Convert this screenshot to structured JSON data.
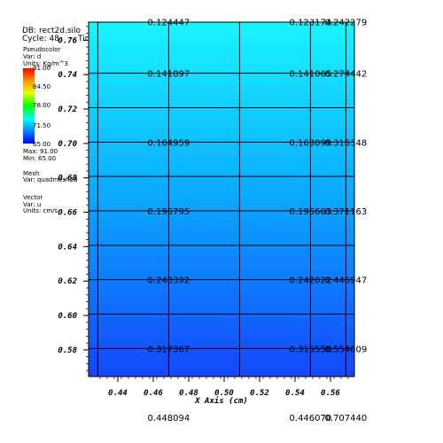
{
  "header": {
    "db_label": "DB: rect2d.silo",
    "cycle_label": "Cycle: 48",
    "time_label": "Time:4.8"
  },
  "legend": {
    "plot_type": "Pseudocolor",
    "var_label": "Var: d",
    "units_label": "Units: Kg/m^3",
    "ticks": [
      "91.00",
      "84.50",
      "78.00",
      "71.50",
      "65.00"
    ],
    "max_label": "Max: 91.00",
    "min_label": "Min: 65.00",
    "mesh_title": "Mesh",
    "mesh_var": "Var: quadmesh2d",
    "vector_title": "Vector",
    "vector_var": "Var: u",
    "vector_units": "Units: cm/s"
  },
  "colors": {
    "cell_top": "#19f5ff",
    "cell_bottom": "#1446ff",
    "grid": "#000000"
  },
  "chart_data": {
    "type": "heatmap",
    "xlabel": "X Axis (cm)",
    "x_ticks": [
      "0.44",
      "0.46",
      "0.48",
      "0.50",
      "0.52",
      "0.54",
      "0.56"
    ],
    "y_ticks": [
      "0.76",
      "0.74",
      "0.72",
      "0.70",
      "0.68",
      "0.66",
      "0.64",
      "0.62",
      "0.60",
      "0.58"
    ],
    "xlim": [
      0.4235,
      0.5735
    ],
    "ylim": [
      0.5645,
      0.7705
    ],
    "x_edges": [
      0.4287,
      0.4687,
      0.5087,
      0.5487,
      0.5687
    ],
    "y_edges": [
      0.5808,
      0.6008,
      0.6208,
      0.6408,
      0.6608,
      0.6808,
      0.7008,
      0.7208,
      0.7408
    ],
    "labels": [
      {
        "x": 0.4687,
        "y": 0.7708,
        "text": "0.124447"
      },
      {
        "x": 0.5487,
        "y": 0.7708,
        "text": "0.123174"
      },
      {
        "x": 0.5687,
        "y": 0.7708,
        "text": "0.242279"
      },
      {
        "x": 0.4687,
        "y": 0.7408,
        "text": "0.141897"
      },
      {
        "x": 0.5487,
        "y": 0.7408,
        "text": "0.141065"
      },
      {
        "x": 0.5687,
        "y": 0.7408,
        "text": "0.274442"
      },
      {
        "x": 0.4687,
        "y": 0.7008,
        "text": "0.164959"
      },
      {
        "x": 0.5487,
        "y": 0.7008,
        "text": "0.163099"
      },
      {
        "x": 0.5687,
        "y": 0.7008,
        "text": "0.315348"
      },
      {
        "x": 0.4687,
        "y": 0.6608,
        "text": "0.196795"
      },
      {
        "x": 0.5487,
        "y": 0.6608,
        "text": "0.195663"
      },
      {
        "x": 0.5687,
        "y": 0.6608,
        "text": "0.371163"
      },
      {
        "x": 0.4687,
        "y": 0.6208,
        "text": "0.243392"
      },
      {
        "x": 0.5487,
        "y": 0.6208,
        "text": "0.242022"
      },
      {
        "x": 0.5687,
        "y": 0.6208,
        "text": "0.446947"
      },
      {
        "x": 0.4687,
        "y": 0.5808,
        "text": "0.317367"
      },
      {
        "x": 0.5487,
        "y": 0.5808,
        "text": "0.315558"
      },
      {
        "x": 0.5687,
        "y": 0.5808,
        "text": "0.554609"
      },
      {
        "x": 0.4687,
        "y": 0.5408,
        "text": "0.448094"
      },
      {
        "x": 0.5487,
        "y": 0.5408,
        "text": "0.446070"
      },
      {
        "x": 0.5687,
        "y": 0.5408,
        "text": "0.707440"
      }
    ]
  }
}
